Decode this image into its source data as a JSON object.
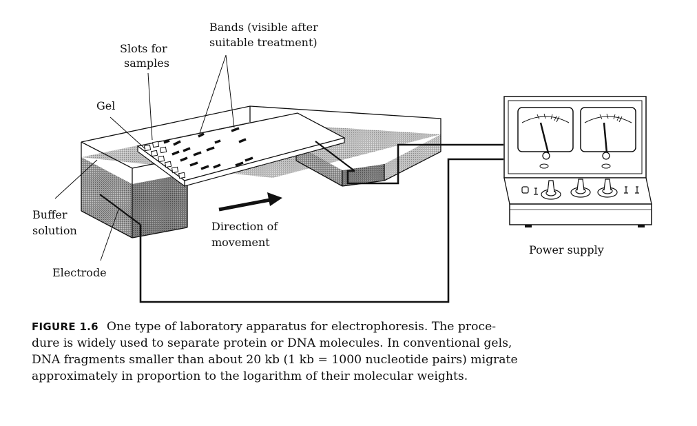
{
  "labels": {
    "bands_line1": "Bands (visible after",
    "bands_line2": "suitable treatment)",
    "slots_line1": "Slots for",
    "slots_line2": "samples",
    "gel": "Gel",
    "buffer_line1": "Buffer",
    "buffer_line2": "solution",
    "electrode": "Electrode",
    "direction_line1": "Direction of",
    "direction_line2": "movement",
    "power_supply": "Power supply"
  },
  "caption": {
    "figure_label": "FIGURE 1.6",
    "lines": [
      "One type of laboratory apparatus for electrophoresis. The proce-",
      "dure is widely used to separate protein or DNA molecules. In conventional gels,",
      "DNA fragments smaller than about 20 kb (1 kb = 1000 nucleotide pairs) migrate",
      "approximately in proportion to the logarithm of their molecular weights."
    ]
  }
}
